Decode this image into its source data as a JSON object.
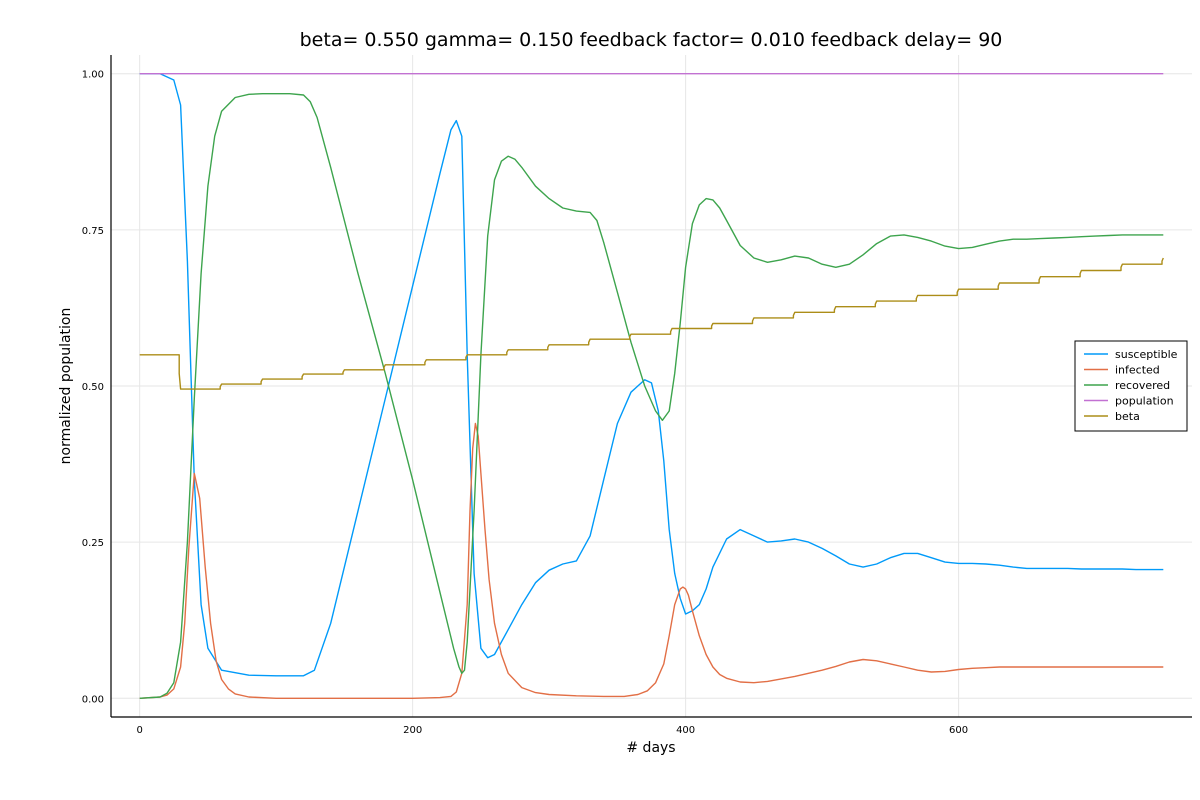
{
  "chart_data": {
    "type": "line",
    "title": "beta= 0.550 gamma= 0.150 feedback factor= 0.010 feedback delay= 90",
    "xlabel": "# days",
    "ylabel": "normalized population",
    "xlim": [
      -21,
      771
    ],
    "ylim": [
      -0.03,
      1.03
    ],
    "xticks": [
      0,
      200,
      400,
      600
    ],
    "xtick_labels": [
      "0",
      "200",
      "400",
      "600"
    ],
    "yticks": [
      0,
      0.25,
      0.5,
      0.75,
      1.0
    ],
    "ytick_labels": [
      "0.00",
      "0.25",
      "0.50",
      "0.75",
      "1.00"
    ],
    "grid": true,
    "legend_position": "right",
    "series": [
      {
        "name": "susceptible",
        "color": "#009af9",
        "x": [
          0,
          15,
          25,
          30,
          35,
          40,
          45,
          50,
          60,
          80,
          100,
          120,
          128,
          140,
          160,
          180,
          200,
          220,
          228,
          232,
          236,
          240,
          245,
          250,
          255,
          260,
          270,
          280,
          290,
          300,
          310,
          320,
          330,
          340,
          350,
          360,
          370,
          375,
          380,
          384,
          388,
          392,
          396,
          400,
          405,
          410,
          415,
          420,
          430,
          440,
          450,
          460,
          470,
          480,
          490,
          500,
          510,
          520,
          530,
          540,
          550,
          560,
          570,
          580,
          590,
          600,
          610,
          620,
          630,
          640,
          650,
          660,
          670,
          680,
          690,
          700,
          710,
          720,
          730,
          740,
          750
        ],
        "y": [
          1.0,
          1.0,
          0.99,
          0.95,
          0.7,
          0.35,
          0.15,
          0.08,
          0.045,
          0.037,
          0.036,
          0.036,
          0.045,
          0.12,
          0.3,
          0.48,
          0.66,
          0.84,
          0.91,
          0.925,
          0.9,
          0.55,
          0.2,
          0.08,
          0.065,
          0.07,
          0.11,
          0.15,
          0.185,
          0.205,
          0.215,
          0.22,
          0.26,
          0.35,
          0.44,
          0.49,
          0.51,
          0.505,
          0.46,
          0.38,
          0.27,
          0.2,
          0.16,
          0.135,
          0.14,
          0.15,
          0.175,
          0.21,
          0.255,
          0.27,
          0.26,
          0.25,
          0.252,
          0.255,
          0.25,
          0.24,
          0.228,
          0.215,
          0.21,
          0.215,
          0.225,
          0.232,
          0.232,
          0.225,
          0.218,
          0.216,
          0.216,
          0.215,
          0.213,
          0.21,
          0.208,
          0.208,
          0.208,
          0.208,
          0.207,
          0.207,
          0.207,
          0.207,
          0.206,
          0.206,
          0.206
        ]
      },
      {
        "name": "infected",
        "color": "#e26f46",
        "x": [
          0,
          15,
          20,
          25,
          30,
          33,
          36,
          40,
          44,
          48,
          52,
          56,
          60,
          65,
          70,
          80,
          100,
          150,
          200,
          220,
          228,
          232,
          236,
          240,
          242,
          244,
          246,
          248,
          250,
          253,
          256,
          260,
          265,
          270,
          280,
          290,
          300,
          320,
          340,
          355,
          365,
          372,
          378,
          384,
          388,
          392,
          396,
          398,
          400,
          402,
          405,
          410,
          415,
          420,
          425,
          430,
          440,
          450,
          460,
          470,
          480,
          490,
          500,
          510,
          520,
          530,
          540,
          550,
          560,
          570,
          580,
          590,
          600,
          610,
          620,
          630,
          640,
          650,
          660,
          670,
          680,
          690,
          700,
          710,
          720,
          730,
          740,
          750
        ],
        "y": [
          0.0,
          0.002,
          0.005,
          0.015,
          0.05,
          0.12,
          0.24,
          0.36,
          0.32,
          0.21,
          0.12,
          0.06,
          0.03,
          0.015,
          0.007,
          0.002,
          0.0,
          0.0,
          0.0,
          0.001,
          0.003,
          0.01,
          0.04,
          0.15,
          0.3,
          0.4,
          0.44,
          0.42,
          0.36,
          0.27,
          0.19,
          0.12,
          0.07,
          0.04,
          0.017,
          0.009,
          0.006,
          0.004,
          0.003,
          0.003,
          0.006,
          0.012,
          0.025,
          0.055,
          0.1,
          0.15,
          0.175,
          0.178,
          0.175,
          0.165,
          0.14,
          0.1,
          0.07,
          0.05,
          0.038,
          0.032,
          0.026,
          0.025,
          0.027,
          0.031,
          0.035,
          0.04,
          0.045,
          0.051,
          0.058,
          0.062,
          0.06,
          0.055,
          0.05,
          0.045,
          0.042,
          0.043,
          0.046,
          0.048,
          0.049,
          0.05,
          0.05,
          0.05,
          0.05,
          0.05,
          0.05,
          0.05,
          0.05,
          0.05,
          0.05,
          0.05,
          0.05,
          0.05
        ]
      },
      {
        "name": "recovered",
        "color": "#3da44d",
        "x": [
          0,
          15,
          20,
          25,
          30,
          35,
          40,
          45,
          50,
          55,
          60,
          70,
          80,
          90,
          100,
          110,
          120,
          125,
          130,
          140,
          160,
          180,
          200,
          220,
          230,
          234,
          236,
          238,
          240,
          245,
          250,
          255,
          260,
          265,
          270,
          275,
          280,
          290,
          300,
          310,
          320,
          330,
          335,
          340,
          350,
          360,
          370,
          378,
          383,
          388,
          392,
          396,
          400,
          405,
          410,
          415,
          420,
          425,
          430,
          440,
          450,
          460,
          470,
          480,
          490,
          500,
          510,
          520,
          530,
          540,
          550,
          560,
          570,
          580,
          590,
          600,
          610,
          620,
          630,
          640,
          650,
          660,
          670,
          680,
          690,
          700,
          710,
          720,
          730,
          740,
          750
        ],
        "y": [
          0.0,
          0.002,
          0.008,
          0.025,
          0.09,
          0.25,
          0.48,
          0.68,
          0.82,
          0.9,
          0.94,
          0.962,
          0.967,
          0.968,
          0.968,
          0.968,
          0.966,
          0.955,
          0.93,
          0.85,
          0.68,
          0.52,
          0.35,
          0.17,
          0.08,
          0.05,
          0.04,
          0.045,
          0.09,
          0.3,
          0.55,
          0.74,
          0.83,
          0.86,
          0.868,
          0.863,
          0.85,
          0.82,
          0.8,
          0.785,
          0.78,
          0.778,
          0.765,
          0.73,
          0.65,
          0.57,
          0.5,
          0.46,
          0.445,
          0.46,
          0.52,
          0.6,
          0.69,
          0.76,
          0.79,
          0.8,
          0.798,
          0.785,
          0.765,
          0.725,
          0.705,
          0.698,
          0.702,
          0.708,
          0.705,
          0.695,
          0.69,
          0.695,
          0.71,
          0.728,
          0.74,
          0.742,
          0.738,
          0.732,
          0.724,
          0.72,
          0.722,
          0.727,
          0.732,
          0.735,
          0.735,
          0.736,
          0.737,
          0.738,
          0.739,
          0.74,
          0.741,
          0.742,
          0.742,
          0.742,
          0.742
        ]
      },
      {
        "name": "population",
        "color": "#c271d2",
        "x": [
          0,
          750
        ],
        "y": [
          1.0,
          1.0
        ]
      },
      {
        "name": "beta",
        "color": "#ac8d18",
        "x": [
          0,
          29,
          29,
          30,
          30,
          59,
          59,
          60,
          60,
          89,
          89,
          90,
          90,
          119,
          119,
          120,
          120,
          149,
          149,
          150,
          150,
          179,
          179,
          180,
          180,
          209,
          209,
          210,
          210,
          239,
          239,
          240,
          240,
          269,
          269,
          270,
          270,
          299,
          299,
          300,
          300,
          329,
          329,
          330,
          330,
          359,
          359,
          360,
          360,
          389,
          389,
          390,
          390,
          419,
          419,
          420,
          420,
          449,
          449,
          450,
          450,
          479,
          479,
          480,
          480,
          509,
          509,
          510,
          510,
          539,
          539,
          540,
          540,
          569,
          569,
          570,
          570,
          599,
          599,
          600,
          600,
          629,
          629,
          630,
          630,
          659,
          659,
          660,
          660,
          689,
          689,
          690,
          690,
          719,
          719,
          720,
          720,
          749,
          749,
          750
        ],
        "y": [
          0.55,
          0.55,
          0.52,
          0.495,
          0.495,
          0.495,
          0.499,
          0.503,
          0.503,
          0.503,
          0.507,
          0.511,
          0.511,
          0.511,
          0.515,
          0.519,
          0.519,
          0.519,
          0.522,
          0.526,
          0.526,
          0.526,
          0.53,
          0.534,
          0.534,
          0.534,
          0.538,
          0.542,
          0.542,
          0.542,
          0.546,
          0.55,
          0.55,
          0.55,
          0.554,
          0.558,
          0.558,
          0.558,
          0.562,
          0.566,
          0.566,
          0.566,
          0.57,
          0.575,
          0.575,
          0.575,
          0.579,
          0.583,
          0.583,
          0.583,
          0.587,
          0.592,
          0.592,
          0.592,
          0.596,
          0.6,
          0.6,
          0.6,
          0.604,
          0.609,
          0.609,
          0.609,
          0.613,
          0.618,
          0.618,
          0.618,
          0.622,
          0.627,
          0.627,
          0.627,
          0.631,
          0.636,
          0.636,
          0.636,
          0.64,
          0.645,
          0.645,
          0.645,
          0.65,
          0.655,
          0.655,
          0.655,
          0.66,
          0.665,
          0.665,
          0.665,
          0.67,
          0.675,
          0.675,
          0.675,
          0.68,
          0.685,
          0.685,
          0.685,
          0.69,
          0.695,
          0.695,
          0.695,
          0.7,
          0.705
        ]
      }
    ]
  }
}
